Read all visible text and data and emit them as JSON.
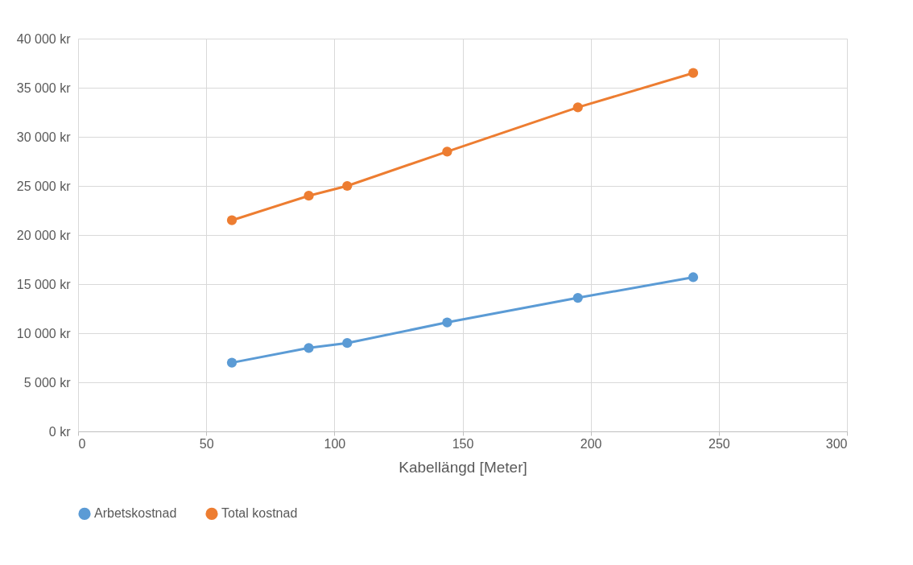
{
  "chart_data": {
    "type": "line",
    "xlabel": "Kabellängd [Meter]",
    "x": [
      60,
      90,
      105,
      144,
      195,
      240
    ],
    "series": [
      {
        "name": "Arbetskostnad",
        "color": "#5b9bd5",
        "values": [
          7000,
          8500,
          9000,
          11100,
          13600,
          15700
        ]
      },
      {
        "name": "Total kostnad",
        "color": "#ed7d31",
        "values": [
          21500,
          24000,
          25000,
          28500,
          33000,
          36500
        ]
      }
    ],
    "xlim": [
      0,
      300
    ],
    "xticks": [
      0,
      50,
      100,
      150,
      200,
      250,
      300
    ],
    "ylim": [
      0,
      40000
    ],
    "yticks": [
      {
        "value": 0,
        "label": "0 kr"
      },
      {
        "value": 5000,
        "label": "5 000 kr"
      },
      {
        "value": 10000,
        "label": "10 000 kr"
      },
      {
        "value": 15000,
        "label": "15 000 kr"
      },
      {
        "value": 20000,
        "label": "20 000 kr"
      },
      {
        "value": 25000,
        "label": "25 000 kr"
      },
      {
        "value": 30000,
        "label": "30 000 kr"
      },
      {
        "value": 35000,
        "label": "35 000 kr"
      },
      {
        "value": 40000,
        "label": "40 000 kr"
      }
    ],
    "grid": true,
    "legend": "bottom",
    "marker": "circle",
    "line_style": "solid"
  }
}
